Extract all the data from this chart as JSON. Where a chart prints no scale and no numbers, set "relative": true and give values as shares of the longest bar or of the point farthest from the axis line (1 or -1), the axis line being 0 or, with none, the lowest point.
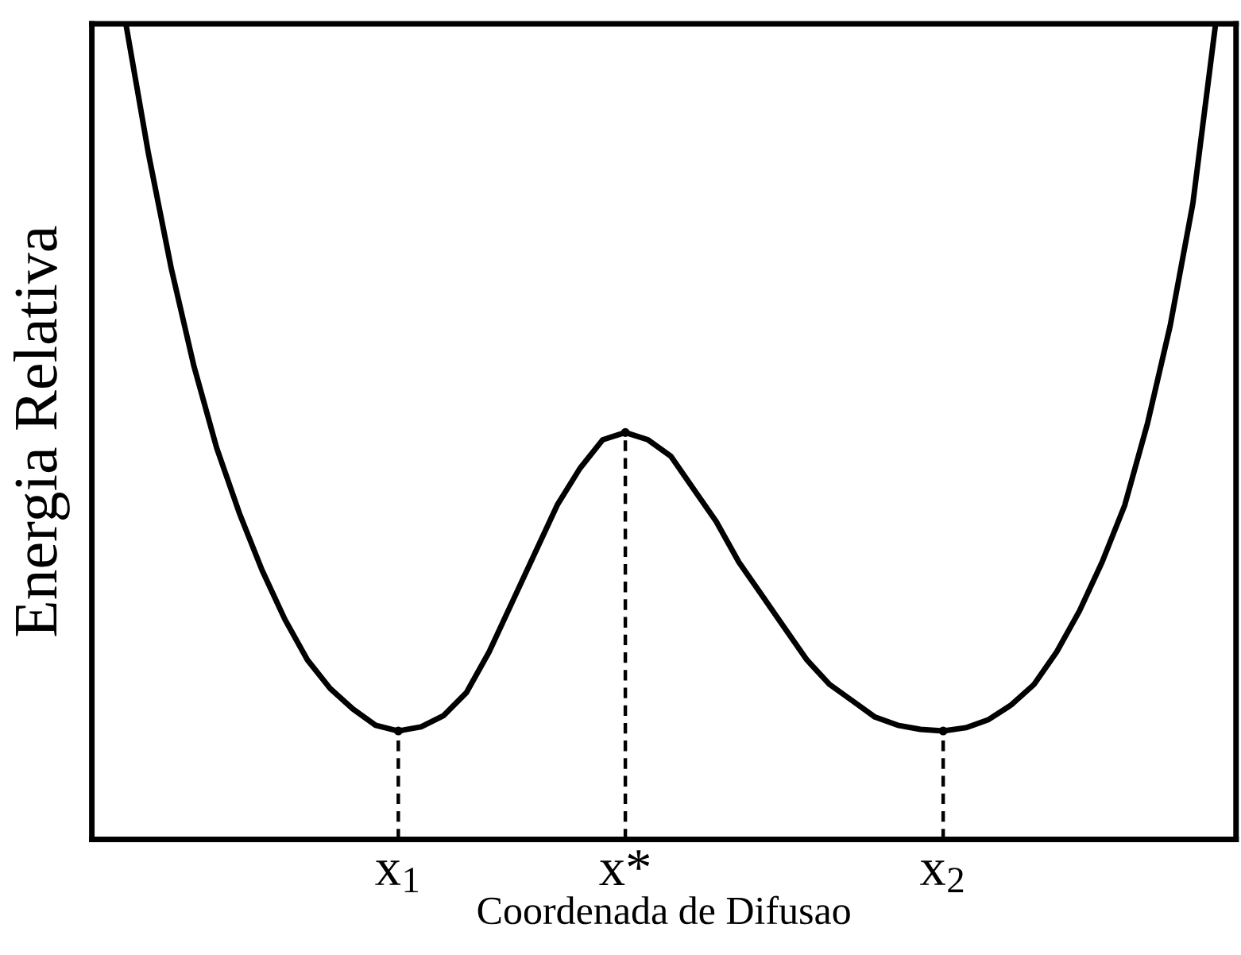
{
  "chart_data": {
    "type": "line",
    "relative": true,
    "xlabel": "Coordenada de Difusao",
    "ylabel": "Energia Relativa",
    "categories": [
      null,
      null,
      null,
      null,
      null,
      null,
      null,
      null,
      null,
      null,
      null,
      null,
      "x$_{1}$",
      null,
      null,
      null,
      null,
      null,
      null,
      null,
      null,
      null,
      "x*",
      null,
      null,
      null,
      null,
      null,
      null,
      null,
      null,
      null,
      null,
      null,
      null,
      null,
      "x$_{2}$",
      null,
      null,
      null,
      null,
      null,
      null,
      null,
      null,
      null,
      null,
      null,
      null
    ],
    "tick_labels": "x",
    "grid": false,
    "legend": false,
    "marker": "none",
    "series": [
      {
        "color": "#000000",
        "line_style": "solid",
        "values": [
          1.0,
          0.84,
          0.7,
          0.58,
          0.48,
          0.4,
          0.33,
          0.27,
          0.22,
          0.185,
          0.16,
          0.14,
          0.133,
          0.138,
          0.152,
          0.18,
          0.23,
          0.29,
          0.35,
          0.41,
          0.455,
          0.49,
          0.499,
          0.49,
          0.47,
          0.43,
          0.39,
          0.34,
          0.3,
          0.26,
          0.22,
          0.19,
          0.17,
          0.15,
          0.14,
          0.135,
          0.133,
          0.137,
          0.147,
          0.165,
          0.19,
          0.23,
          0.28,
          0.34,
          0.41,
          0.51,
          0.63,
          0.78,
          1.0
        ]
      },
      {
        "type": "lollipop",
        "color": "#000000",
        "line_style": "dashed",
        "marker": "circle",
        "values": [
          null,
          null,
          null,
          null,
          null,
          null,
          null,
          null,
          null,
          null,
          null,
          null,
          0.133,
          null,
          null,
          null,
          null,
          null,
          null,
          null,
          null,
          null,
          0.499,
          null,
          null,
          null,
          null,
          null,
          null,
          null,
          null,
          null,
          null,
          null,
          null,
          null,
          0.133,
          null,
          null,
          null,
          null,
          null,
          null,
          null,
          null,
          null,
          null,
          null,
          null
        ]
      }
    ]
  }
}
